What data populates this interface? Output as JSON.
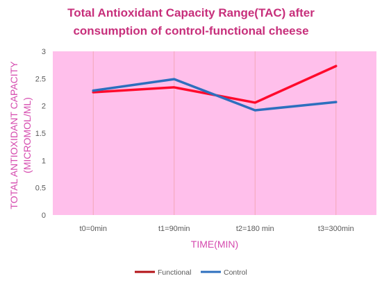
{
  "chart_data": {
    "type": "line",
    "title": "Total Antioxidant Capacity Range(TAC) after consumption of control-functional cheese",
    "title_lines": [
      "Total Antioxidant Capacity Range(TAC) after",
      "consumption of control-functional cheese"
    ],
    "xlabel": "TIME(MIN)",
    "ylabel": "TOTAL ANTIOXIDANT CAPACITY (MICROMOL/ML)",
    "ylabel_lines": [
      "TOTAL ANTIOXIDANT CAPACITY",
      "(MICROMOL/ML)"
    ],
    "categories": [
      "t0=0min",
      "t1=90min",
      "t2=180 min",
      "t3=300min"
    ],
    "ylim": [
      0,
      3
    ],
    "y_ticks": [
      "0",
      "0.5",
      "1",
      "1.5",
      "2",
      "2.5",
      "3"
    ],
    "grid": "vertical",
    "legend_position": "bottom",
    "series": [
      {
        "name": "Functional",
        "values": [
          2.25,
          2.34,
          2.06,
          2.73
        ],
        "color": "#ff0a2c"
      },
      {
        "name": "Control",
        "values": [
          2.28,
          2.49,
          1.92,
          2.07
        ],
        "color": "#2d6fbe"
      }
    ],
    "colors": {
      "title": "#c72f7b",
      "plot_background": "#ffbfeb",
      "axis_label": "#d54aae",
      "tick_text": "#595959",
      "grid": "#f3a7b7",
      "legend_functional_marker": "#b31217",
      "legend_control_marker": "#2d6fbe"
    }
  }
}
